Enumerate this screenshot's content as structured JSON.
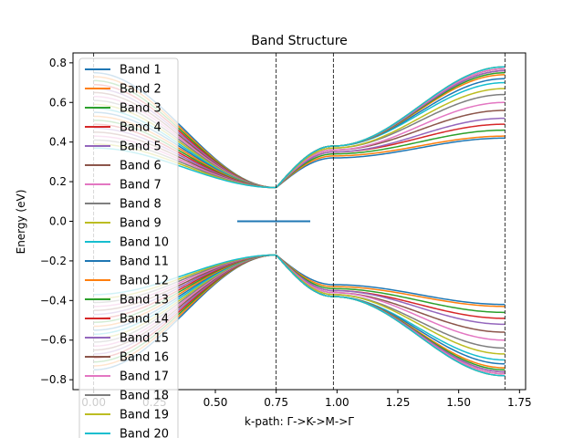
{
  "chart_data": {
    "type": "line",
    "title": "Band Structure",
    "xlabel": "k-path: Γ->K->M->Γ",
    "ylabel": "Energy (eV)",
    "xlim": [
      -0.085,
      1.775
    ],
    "ylim": [
      -0.85,
      0.85
    ],
    "x_ticks": [
      0.0,
      0.25,
      0.5,
      0.75,
      1.0,
      1.25,
      1.5,
      1.75
    ],
    "x_tick_labels": [
      "0.00",
      "0.25",
      "0.50",
      "0.75",
      "1.00",
      "1.25",
      "1.50",
      "1.75"
    ],
    "y_ticks": [
      -0.8,
      -0.6,
      -0.4,
      -0.2,
      0.0,
      0.2,
      0.4,
      0.6,
      0.8
    ],
    "y_tick_labels": [
      "−0.8",
      "−0.6",
      "−0.4",
      "−0.2",
      "0.0",
      "0.2",
      "0.4",
      "0.6",
      "0.8"
    ],
    "high_symmetry_points": [
      0.0,
      0.75,
      0.985,
      1.69
    ],
    "legend_position": "upper-left",
    "grid": false,
    "band_gap_region": [
      0.59,
      0.89
    ],
    "series": [
      {
        "name": "Band 1",
        "color": "#1f77b4",
        "gamma": -0.75,
        "k": -0.17,
        "m": -0.32,
        "gamma_end": -0.42
      },
      {
        "name": "Band 2",
        "color": "#ff7f0e",
        "gamma": -0.73,
        "k": -0.17,
        "m": -0.33,
        "gamma_end": -0.43
      },
      {
        "name": "Band 3",
        "color": "#2ca02c",
        "gamma": -0.71,
        "k": -0.17,
        "m": -0.34,
        "gamma_end": -0.46
      },
      {
        "name": "Band 4",
        "color": "#d62728",
        "gamma": -0.69,
        "k": -0.17,
        "m": -0.35,
        "gamma_end": -0.49
      },
      {
        "name": "Band 5",
        "color": "#9467bd",
        "gamma": -0.67,
        "k": -0.17,
        "m": -0.35,
        "gamma_end": -0.52
      },
      {
        "name": "Band 6",
        "color": "#8c564b",
        "gamma": -0.65,
        "k": -0.17,
        "m": -0.36,
        "gamma_end": -0.56
      },
      {
        "name": "Band 7",
        "color": "#e377c2",
        "gamma": -0.63,
        "k": -0.17,
        "m": -0.36,
        "gamma_end": -0.6
      },
      {
        "name": "Band 8",
        "color": "#7f7f7f",
        "gamma": -0.61,
        "k": -0.17,
        "m": -0.37,
        "gamma_end": -0.64
      },
      {
        "name": "Band 9",
        "color": "#bcbd22",
        "gamma": -0.59,
        "k": -0.17,
        "m": -0.37,
        "gamma_end": -0.67
      },
      {
        "name": "Band 10",
        "color": "#17becf",
        "gamma": -0.57,
        "k": -0.17,
        "m": -0.38,
        "gamma_end": -0.7
      },
      {
        "name": "Band 11",
        "color": "#1f77b4",
        "gamma": -0.55,
        "k": -0.17,
        "m": -0.38,
        "gamma_end": -0.72
      },
      {
        "name": "Band 12",
        "color": "#ff7f0e",
        "gamma": -0.53,
        "k": -0.17,
        "m": -0.38,
        "gamma_end": -0.74
      },
      {
        "name": "Band 13",
        "color": "#2ca02c",
        "gamma": -0.51,
        "k": -0.17,
        "m": -0.38,
        "gamma_end": -0.75
      },
      {
        "name": "Band 14",
        "color": "#d62728",
        "gamma": -0.49,
        "k": -0.17,
        "m": -0.38,
        "gamma_end": -0.76
      },
      {
        "name": "Band 15",
        "color": "#9467bd",
        "gamma": -0.47,
        "k": -0.17,
        "m": -0.38,
        "gamma_end": -0.76
      },
      {
        "name": "Band 16",
        "color": "#8c564b",
        "gamma": -0.45,
        "k": -0.17,
        "m": -0.38,
        "gamma_end": -0.77
      },
      {
        "name": "Band 17",
        "color": "#e377c2",
        "gamma": -0.43,
        "k": -0.17,
        "m": -0.38,
        "gamma_end": -0.77
      },
      {
        "name": "Band 18",
        "color": "#7f7f7f",
        "gamma": -0.41,
        "k": -0.17,
        "m": -0.38,
        "gamma_end": -0.78
      },
      {
        "name": "Band 19",
        "color": "#bcbd22",
        "gamma": -0.39,
        "k": -0.17,
        "m": -0.38,
        "gamma_end": -0.78
      },
      {
        "name": "Band 20",
        "color": "#17becf",
        "gamma": -0.37,
        "k": -0.17,
        "m": -0.38,
        "gamma_end": -0.78
      }
    ]
  }
}
